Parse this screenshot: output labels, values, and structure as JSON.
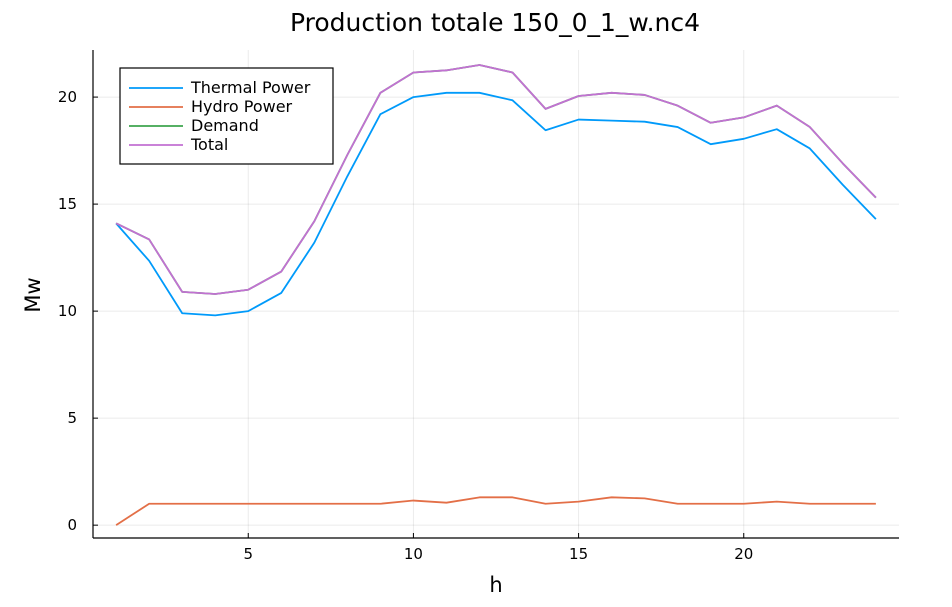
{
  "chart_data": {
    "type": "line",
    "title": "Production  totale 150_0_1_w.nc4",
    "xlabel": "h",
    "ylabel": "Mw",
    "xlim": [
      0.3,
      24.7
    ],
    "ylim": [
      -0.6,
      22.2
    ],
    "xticks": [
      5,
      10,
      15,
      20
    ],
    "yticks": [
      0,
      5,
      10,
      15,
      20
    ],
    "grid": true,
    "legend_position": "top-left",
    "x": [
      1,
      2,
      3,
      4,
      5,
      6,
      7,
      8,
      9,
      10,
      11,
      12,
      13,
      14,
      15,
      16,
      17,
      18,
      19,
      20,
      21,
      22,
      23,
      24
    ],
    "series": [
      {
        "name": "Thermal Power",
        "color": "#009AFA",
        "values": [
          14.1,
          12.35,
          9.9,
          9.8,
          10.0,
          10.85,
          13.2,
          16.3,
          19.2,
          20.0,
          20.2,
          20.2,
          19.85,
          18.45,
          18.95,
          18.9,
          18.85,
          18.6,
          17.8,
          18.05,
          18.5,
          17.6,
          15.9,
          14.3
        ]
      },
      {
        "name": "Hydro Power",
        "color": "#E36F47",
        "values": [
          0.0,
          1.0,
          1.0,
          1.0,
          1.0,
          1.0,
          1.0,
          1.0,
          1.0,
          1.15,
          1.05,
          1.3,
          1.3,
          1.0,
          1.1,
          1.3,
          1.25,
          1.0,
          1.0,
          1.0,
          1.1,
          1.0,
          1.0,
          1.0
        ]
      },
      {
        "name": "Demand",
        "color": "#3EA44E",
        "values": [
          14.1,
          13.35,
          10.9,
          10.8,
          11.0,
          11.85,
          14.2,
          17.3,
          20.2,
          21.15,
          21.25,
          21.5,
          21.15,
          19.45,
          20.05,
          20.2,
          20.1,
          19.6,
          18.8,
          19.05,
          19.6,
          18.6,
          16.9,
          15.3
        ]
      },
      {
        "name": "Total",
        "color": "#C271D2",
        "values": [
          14.1,
          13.35,
          10.9,
          10.8,
          11.0,
          11.85,
          14.2,
          17.3,
          20.2,
          21.15,
          21.25,
          21.5,
          21.15,
          19.45,
          20.05,
          20.2,
          20.1,
          19.6,
          18.8,
          19.05,
          19.6,
          18.6,
          16.9,
          15.3
        ]
      }
    ]
  }
}
